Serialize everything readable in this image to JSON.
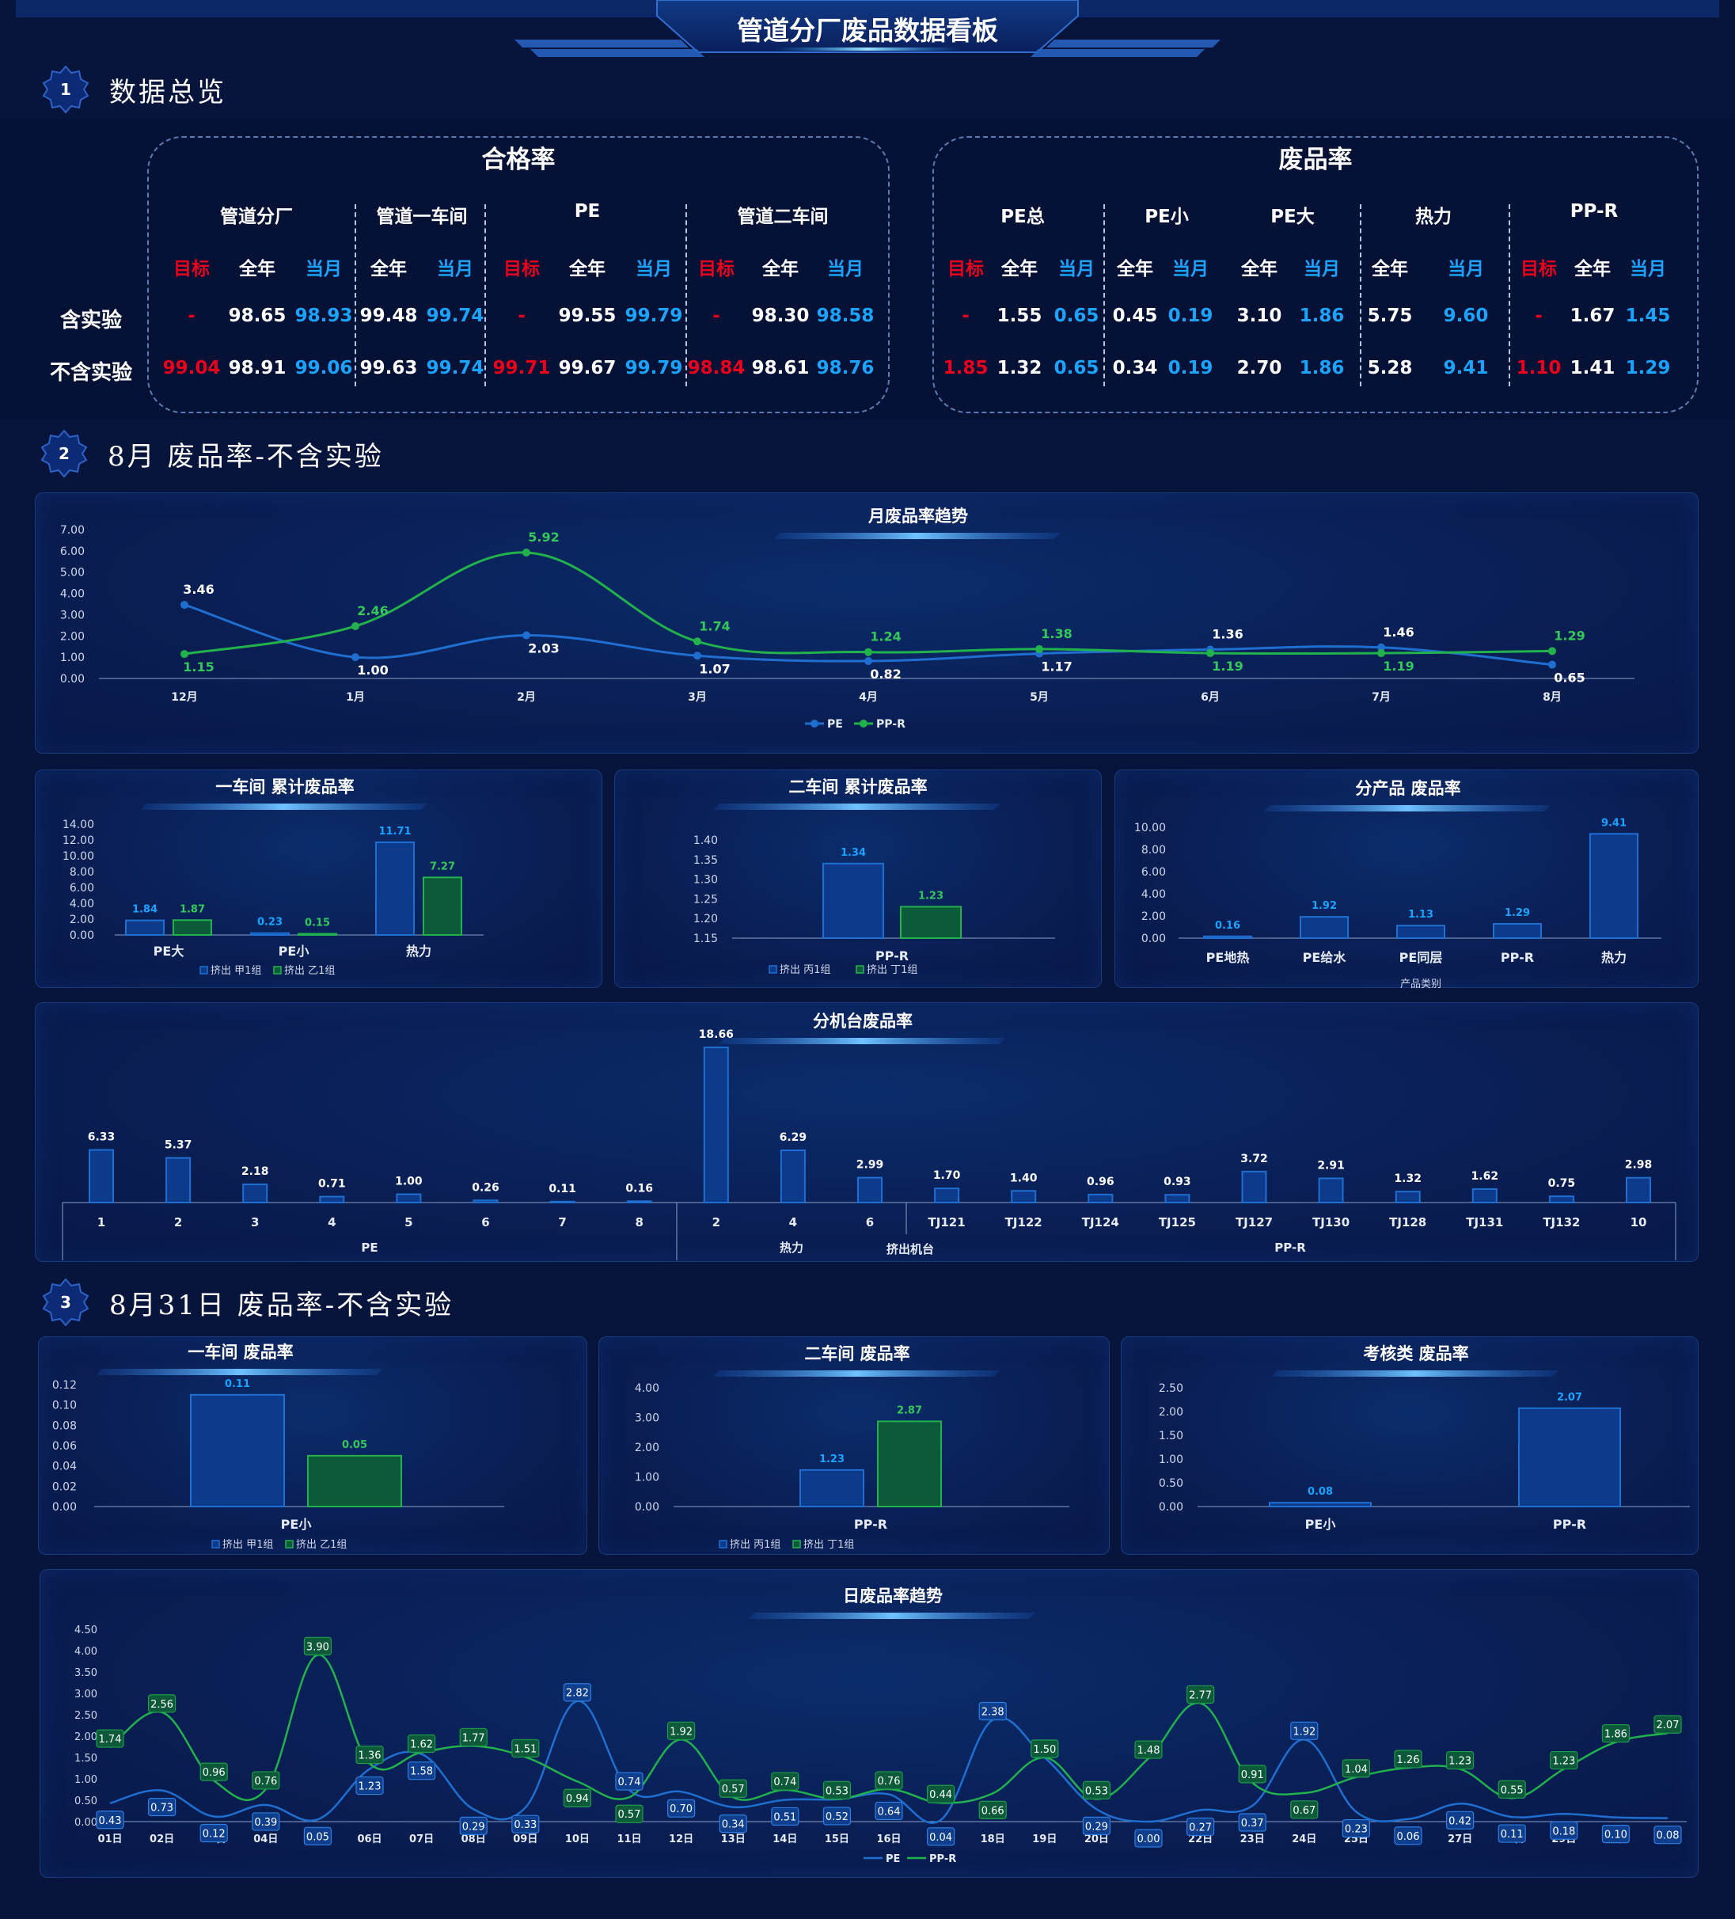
{
  "header": {
    "title": "管道分厂废品数据看板"
  },
  "sections": [
    {
      "number": "1",
      "title": "数据总览"
    },
    {
      "number": "2",
      "title": "8月 废品率-不含实验"
    },
    {
      "number": "3",
      "title": "8月31日 废品率-不含实验"
    }
  ],
  "overview": {
    "pass_rate": {
      "title": "合格率",
      "groups": [
        "管道分厂",
        "管道一车间",
        "PE",
        "管道二车间"
      ],
      "subheaders": [
        "目标",
        "全年",
        "当月",
        "全年",
        "当月",
        "目标",
        "全年",
        "当月",
        "目标",
        "全年",
        "当月"
      ],
      "rows": [
        {
          "label": "含实验",
          "values": [
            "-",
            "98.65",
            "98.93",
            "99.48",
            "99.74",
            "-",
            "99.55",
            "99.79",
            "-",
            "98.30",
            "98.58"
          ]
        },
        {
          "label": "不含实验",
          "values": [
            "99.04",
            "98.91",
            "99.06",
            "99.63",
            "99.74",
            "99.71",
            "99.67",
            "99.79",
            "98.84",
            "98.61",
            "98.76"
          ]
        }
      ]
    },
    "scrap_rate": {
      "title": "废品率",
      "groups": [
        "PE总",
        "PE小",
        "PE大",
        "热力",
        "PP-R"
      ],
      "subheaders": [
        "目标",
        "全年",
        "当月",
        "全年",
        "当月",
        "全年",
        "当月",
        "全年",
        "当月",
        "目标",
        "全年",
        "当月"
      ],
      "rows": [
        {
          "values": [
            "-",
            "1.55",
            "0.65",
            "0.45",
            "0.19",
            "3.10",
            "1.86",
            "5.75",
            "9.60",
            "-",
            "1.67",
            "1.45"
          ]
        },
        {
          "values": [
            "1.85",
            "1.32",
            "0.65",
            "0.34",
            "0.19",
            "2.70",
            "1.86",
            "5.28",
            "9.41",
            "1.10",
            "1.41",
            "1.29"
          ]
        }
      ]
    }
  },
  "colors": {
    "pe": "#1f6fd1",
    "ppr": "#22b24c",
    "target": "#e8001c",
    "month": "#1aa3ff",
    "bg": "#07143b"
  },
  "chart_data": [
    {
      "id": "monthly",
      "type": "line",
      "title": "月废品率趋势",
      "categories": [
        "12月",
        "1月",
        "2月",
        "3月",
        "4月",
        "5月",
        "6月",
        "7月",
        "8月"
      ],
      "series": [
        {
          "name": "PE",
          "values": [
            3.46,
            1.0,
            2.03,
            1.07,
            0.82,
            1.17,
            1.36,
            1.46,
            0.65
          ]
        },
        {
          "name": "PP-R",
          "values": [
            1.15,
            2.46,
            5.92,
            1.74,
            1.24,
            1.38,
            1.19,
            1.19,
            1.29
          ]
        }
      ],
      "yticks": [
        "0.00",
        "1.00",
        "2.00",
        "3.00",
        "4.00",
        "5.00",
        "6.00",
        "7.00"
      ],
      "ylim": [
        0,
        7
      ]
    },
    {
      "id": "ws1",
      "type": "bar",
      "title": "一车间 累计废品率",
      "categories": [
        "PE大",
        "PE小",
        "热力"
      ],
      "series": [
        {
          "name": "挤出 甲1组",
          "values": [
            1.84,
            0.23,
            11.71
          ]
        },
        {
          "name": "挤出 乙1组",
          "values": [
            1.87,
            0.15,
            7.27
          ]
        }
      ],
      "yticks": [
        "0.00",
        "2.00",
        "4.00",
        "6.00",
        "8.00",
        "10.00",
        "12.00",
        "14.00"
      ],
      "ylim": [
        0,
        14
      ]
    },
    {
      "id": "ws2",
      "type": "bar",
      "title": "二车间 累计废品率",
      "categories": [
        "PP-R"
      ],
      "series": [
        {
          "name": "挤出 丙1组",
          "values": [
            1.34
          ]
        },
        {
          "name": "挤出 丁1组",
          "values": [
            1.23
          ]
        }
      ],
      "yticks": [
        "1.15",
        "1.20",
        "1.25",
        "1.30",
        "1.35",
        "1.40"
      ],
      "ylim": [
        1.15,
        1.4
      ]
    },
    {
      "id": "product",
      "type": "bar",
      "title": "分产品 废品率",
      "categories": [
        "PE地热",
        "PE给水",
        "PE同层",
        "PP-R",
        "热力"
      ],
      "values": [
        0.16,
        1.92,
        1.13,
        1.29,
        9.41
      ],
      "xlabel": "产品类别",
      "yticks": [
        "0.00",
        "2.00",
        "4.00",
        "6.00",
        "8.00",
        "10.00"
      ],
      "ylim": [
        0,
        10
      ]
    },
    {
      "id": "machine",
      "type": "bar",
      "title": "分机台废品率",
      "categories": [
        "1",
        "2",
        "3",
        "4",
        "5",
        "6",
        "7",
        "8",
        "2",
        "4",
        "6",
        "TJ121",
        "TJ122",
        "TJ124",
        "TJ125",
        "TJ127",
        "TJ130",
        "TJ128",
        "TJ131",
        "TJ132",
        "10"
      ],
      "values": [
        6.33,
        5.37,
        2.18,
        0.71,
        1.0,
        0.26,
        0.11,
        0.16,
        18.66,
        6.29,
        2.99,
        1.7,
        1.4,
        0.96,
        0.93,
        3.72,
        2.91,
        1.32,
        1.62,
        0.75,
        2.98
      ],
      "groups": [
        {
          "label": "PE",
          "count": 8
        },
        {
          "label": "热力",
          "count": 3
        },
        {
          "label": "PP-R",
          "count": 10
        }
      ],
      "xlabel": "挤出机台",
      "ylim": [
        0,
        20
      ]
    },
    {
      "id": "d_ws1",
      "type": "bar",
      "title": "一车间 废品率",
      "categories": [
        "PE小"
      ],
      "series": [
        {
          "name": "挤出 甲1组",
          "values": [
            0.11
          ]
        },
        {
          "name": "挤出 乙1组",
          "values": [
            0.05
          ]
        }
      ],
      "yticks": [
        "0.00",
        "0.02",
        "0.04",
        "0.06",
        "0.08",
        "0.10",
        "0.12"
      ],
      "ylim": [
        0,
        0.12
      ]
    },
    {
      "id": "d_ws2",
      "type": "bar",
      "title": "二车间 废品率",
      "categories": [
        "PP-R"
      ],
      "series": [
        {
          "name": "挤出 丙1组",
          "values": [
            1.23
          ]
        },
        {
          "name": "挤出 丁1组",
          "values": [
            2.87
          ]
        }
      ],
      "yticks": [
        "0.00",
        "1.00",
        "2.00",
        "3.00",
        "4.00"
      ],
      "ylim": [
        0,
        4
      ]
    },
    {
      "id": "d_assess",
      "type": "bar",
      "title": "考核类 废品率",
      "categories": [
        "PE小",
        "PP-R"
      ],
      "values": [
        0.08,
        2.07
      ],
      "yticks": [
        "0.00",
        "0.50",
        "1.00",
        "1.50",
        "2.00",
        "2.50"
      ],
      "ylim": [
        0,
        2.5
      ]
    },
    {
      "id": "daily",
      "type": "line",
      "title": "日废品率趋势",
      "categories": [
        "01日",
        "02日",
        "03日",
        "04日",
        "05日",
        "06日",
        "07日",
        "08日",
        "09日",
        "10日",
        "11日",
        "12日",
        "13日",
        "14日",
        "15日",
        "16日",
        "17日",
        "18日",
        "19日",
        "20日",
        "21日",
        "22日",
        "23日",
        "24日",
        "25日",
        "26日",
        "27日",
        "28日",
        "29日",
        "30日",
        "31日"
      ],
      "series": [
        {
          "name": "PE",
          "values": [
            0.43,
            0.73,
            0.12,
            0.39,
            0.05,
            1.23,
            1.58,
            0.29,
            0.33,
            2.82,
            0.74,
            0.7,
            0.34,
            0.51,
            0.52,
            0.64,
            0.04,
            2.38,
            1.5,
            0.29,
            0.0,
            0.27,
            0.37,
            1.92,
            0.23,
            0.06,
            0.42,
            0.11,
            0.18,
            0.1,
            0.08
          ]
        },
        {
          "name": "PP-R",
          "values": [
            1.74,
            2.56,
            0.96,
            0.76,
            3.9,
            1.36,
            1.62,
            1.77,
            1.51,
            0.94,
            0.57,
            1.92,
            0.57,
            0.74,
            0.53,
            0.76,
            0.44,
            0.66,
            1.5,
            0.53,
            1.48,
            2.77,
            0.91,
            0.67,
            1.04,
            1.26,
            1.23,
            0.55,
            1.23,
            1.86,
            2.07
          ]
        }
      ],
      "yticks": [
        "0.00",
        "0.50",
        "1.00",
        "1.50",
        "2.00",
        "2.50",
        "3.00",
        "3.50",
        "4.00",
        "4.50"
      ],
      "ylim": [
        0,
        4.5
      ]
    }
  ]
}
